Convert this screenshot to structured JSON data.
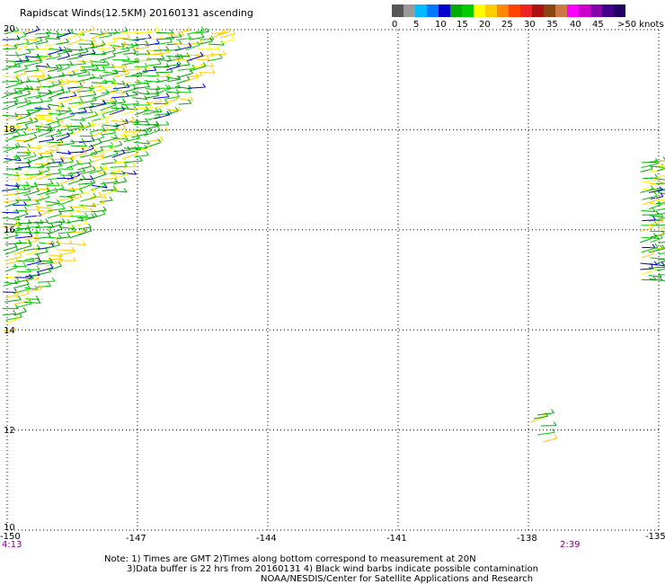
{
  "title": "Rapidscat Winds(12.5KM) 20160131 ascending",
  "colorbar": {
    "colors": [
      "#555555",
      "#999999",
      "#00bbff",
      "#0077ff",
      "#0000cc",
      "#00aa00",
      "#00cc00",
      "#ffff00",
      "#ffcc00",
      "#ff8800",
      "#ff4400",
      "#ee2222",
      "#aa1111",
      "#8b4513",
      "#cc7744",
      "#ff00ff",
      "#cc00cc",
      "#8800aa",
      "#440088",
      "#220066"
    ],
    "labels": [
      "0",
      "5",
      "10",
      "15",
      "20",
      "25",
      "30",
      "35",
      "40",
      "45",
      ">50 knots"
    ]
  },
  "lat_labels": [
    "20",
    "18",
    "16",
    "14",
    "12",
    "10"
  ],
  "lon_labels": [
    "-150",
    "-147",
    "-144",
    "-141",
    "-138",
    "-135"
  ],
  "time_labels": [
    "4:13",
    "2:39"
  ],
  "notes": [
    "Note: 1) Times are GMT 2)Times along bottom correspond to measurement at 20N",
    "3)Data buffer is 22 hrs from 20160131 4) Black wind barbs indicate possible contamination",
    "NOAA/NESDIS/Center for Satellite Applications and Research"
  ],
  "map": {
    "lon_range": [
      -150,
      -135
    ],
    "lat_range": [
      10,
      20
    ]
  }
}
